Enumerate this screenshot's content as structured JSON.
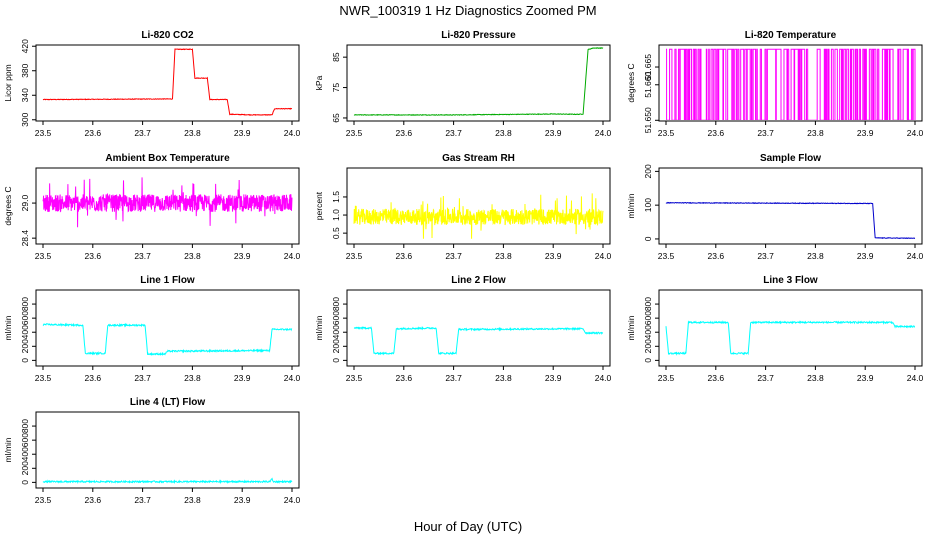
{
  "title": "NWR_100319  1 Hz Diagnostics Zoomed PM",
  "xlabel": "Hour of Day (UTC)",
  "chart_data": [
    {
      "type": "line",
      "title": "Li-820 CO2",
      "ylabel": "Licor ppm",
      "color": "#ff0000",
      "xlim": [
        23.5,
        24.0
      ],
      "ylim": [
        298,
        422
      ],
      "xticks": [
        "23.5",
        "23.6",
        "23.7",
        "23.8",
        "23.9",
        "24.0"
      ],
      "yticks": [
        300,
        340,
        380,
        420
      ],
      "series": [
        {
          "x": [
            23.5,
            23.76,
            23.765,
            23.8,
            23.805,
            23.83,
            23.835,
            23.87,
            23.875,
            23.92,
            23.925,
            23.96,
            23.965,
            24.0
          ],
          "y": [
            333,
            334,
            415,
            415,
            368,
            368,
            333,
            333,
            309,
            308,
            308,
            308,
            318,
            318
          ]
        }
      ]
    },
    {
      "type": "line",
      "title": "Li-820 Pressure",
      "ylabel": "kPa",
      "color": "#00aa00",
      "xlim": [
        23.5,
        24.0
      ],
      "ylim": [
        64,
        89
      ],
      "xticks": [
        "23.5",
        "23.6",
        "23.7",
        "23.8",
        "23.9",
        "24.0"
      ],
      "yticks": [
        65,
        75,
        85
      ],
      "series": [
        {
          "x": [
            23.5,
            23.7,
            23.9,
            23.95,
            23.96,
            23.97,
            23.98,
            24.0
          ],
          "y": [
            66.0,
            66.0,
            66.3,
            66.2,
            66.3,
            87.5,
            88.0,
            88.0
          ]
        }
      ]
    },
    {
      "type": "line",
      "title": "Li-820 Temperature",
      "ylabel": "degrees C",
      "color": "#ff00ff",
      "xlim": [
        23.5,
        24.0
      ],
      "ylim": [
        51.6498,
        51.6712
      ],
      "xticks": [
        "23.5",
        "23.6",
        "23.7",
        "23.8",
        "23.9",
        "24.0"
      ],
      "yticks": [
        "51.650",
        "51.660",
        "51.665"
      ],
      "levels": [
        51.65,
        51.67
      ],
      "series": [
        {
          "pattern": "square wave switching between 51.650 and 51.670"
        }
      ]
    },
    {
      "type": "line",
      "title": "Ambient Box Temperature",
      "ylabel": "degrees C",
      "color": "#ff00ff",
      "xlim": [
        23.5,
        24.0
      ],
      "ylim": [
        28.3,
        29.6
      ],
      "xticks": [
        "23.5",
        "23.6",
        "23.7",
        "23.8",
        "23.9",
        "24.0"
      ],
      "yticks": [
        "28.4",
        "29.0"
      ],
      "series": [
        {
          "mean": 29.0,
          "spread": 0.15
        }
      ]
    },
    {
      "type": "line",
      "title": "Gas Stream RH",
      "ylabel": "percent",
      "color": "#ffff00",
      "xlim": [
        23.5,
        24.0
      ],
      "ylim": [
        0.2,
        2.3
      ],
      "xticks": [
        "23.5",
        "23.6",
        "23.7",
        "23.8",
        "23.9",
        "24.0"
      ],
      "yticks": [
        "0.5",
        "1.0",
        "1.5"
      ],
      "series": [
        {
          "mean": 0.95,
          "spread": 0.22
        }
      ]
    },
    {
      "type": "line",
      "title": "Sample Flow",
      "ylabel": "ml/min",
      "color": "#0000cc",
      "xlim": [
        23.5,
        24.0
      ],
      "ylim": [
        -15,
        210
      ],
      "xticks": [
        "23.5",
        "23.6",
        "23.7",
        "23.8",
        "23.9",
        "24.0"
      ],
      "yticks": [
        0,
        100,
        200
      ],
      "series": [
        {
          "x": [
            23.5,
            23.91,
            23.915,
            23.92,
            24.0
          ],
          "y": [
            107,
            105,
            105,
            3,
            2
          ]
        }
      ]
    },
    {
      "type": "line",
      "title": "Line 1 Flow",
      "ylabel": "ml/min",
      "color": "#00ffff",
      "xlim": [
        23.5,
        24.0
      ],
      "ylim": [
        -80,
        1000
      ],
      "xticks": [
        "23.5",
        "23.6",
        "23.7",
        "23.8",
        "23.9",
        "24.0"
      ],
      "yticks": [
        0,
        200,
        400,
        600,
        800
      ],
      "series": [
        {
          "x": [
            23.5,
            23.58,
            23.585,
            23.625,
            23.63,
            23.705,
            23.71,
            23.745,
            23.75,
            23.955,
            23.96,
            24.0
          ],
          "y": [
            510,
            500,
            100,
            100,
            500,
            500,
            90,
            90,
            130,
            140,
            440,
            440
          ]
        }
      ]
    },
    {
      "type": "line",
      "title": "Line 2 Flow",
      "ylabel": "ml/min",
      "color": "#00ffff",
      "xlim": [
        23.5,
        24.0
      ],
      "ylim": [
        -80,
        1000
      ],
      "xticks": [
        "23.5",
        "23.6",
        "23.7",
        "23.8",
        "23.9",
        "24.0"
      ],
      "yticks": [
        0,
        200,
        400,
        600,
        800
      ],
      "series": [
        {
          "x": [
            23.5,
            23.535,
            23.54,
            23.58,
            23.585,
            23.665,
            23.67,
            23.705,
            23.71,
            23.96,
            23.965,
            24.0
          ],
          "y": [
            460,
            460,
            100,
            100,
            450,
            460,
            100,
            100,
            440,
            450,
            390,
            390
          ]
        }
      ]
    },
    {
      "type": "line",
      "title": "Line 3 Flow",
      "ylabel": "ml/min",
      "color": "#00ffff",
      "xlim": [
        23.5,
        24.0
      ],
      "ylim": [
        -80,
        1000
      ],
      "xticks": [
        "23.5",
        "23.6",
        "23.7",
        "23.8",
        "23.9",
        "24.0"
      ],
      "yticks": [
        0,
        200,
        400,
        600,
        800
      ],
      "series": [
        {
          "x": [
            23.5,
            23.505,
            23.54,
            23.545,
            23.625,
            23.63,
            23.665,
            23.67,
            23.955,
            23.96,
            24.0
          ],
          "y": [
            480,
            100,
            100,
            540,
            540,
            100,
            100,
            540,
            540,
            480,
            480
          ]
        }
      ]
    },
    {
      "type": "line",
      "title": "Line 4 (LT) Flow",
      "ylabel": "ml/min",
      "color": "#00ffff",
      "xlim": [
        23.5,
        24.0
      ],
      "ylim": [
        -80,
        1000
      ],
      "xticks": [
        "23.5",
        "23.6",
        "23.7",
        "23.8",
        "23.9",
        "24.0"
      ],
      "yticks": [
        0,
        200,
        400,
        600,
        800
      ],
      "series": [
        {
          "x": [
            23.5,
            23.955,
            23.96,
            23.962,
            23.965,
            24.0
          ],
          "y": [
            10,
            10,
            50,
            10,
            10,
            10
          ]
        }
      ]
    }
  ]
}
